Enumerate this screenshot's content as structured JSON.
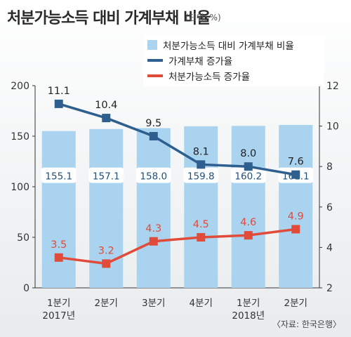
{
  "title": "처분가능소득 대비 가계부채 비율",
  "unit": "(단위: %)",
  "source": "〈자료: 한국은행〉",
  "colors": {
    "bar": "#a9d3ee",
    "household_debt_line": "#2e5f8e",
    "income_line": "#e04b3a"
  },
  "chart_data": {
    "type": "bar",
    "title": "처분가능소득 대비 가계부채 비율",
    "categories": [
      "1분기",
      "2분기",
      "3분기",
      "4분기",
      "1분기",
      "2분기"
    ],
    "category_years": [
      "2017년",
      "",
      "",
      "",
      "2018년",
      ""
    ],
    "series": [
      {
        "name": "처분가능소득 대비 가계부채 비율",
        "type": "bar",
        "axis": "left",
        "values": [
          155.1,
          157.1,
          158.0,
          159.8,
          160.2,
          161.1
        ]
      },
      {
        "name": "가계부채 증가율",
        "type": "line",
        "axis": "right",
        "values": [
          11.1,
          10.4,
          9.5,
          8.1,
          8.0,
          7.6
        ]
      },
      {
        "name": "처분가능소득 증가율",
        "type": "line",
        "axis": "right",
        "values": [
          3.5,
          3.2,
          4.3,
          4.5,
          4.6,
          4.9
        ]
      }
    ],
    "y_left": {
      "range": [
        0,
        200
      ],
      "ticks": [
        "0",
        "50",
        "100",
        "150",
        "200"
      ]
    },
    "y_right": {
      "range": [
        2,
        12
      ],
      "ticks": [
        "2",
        "4",
        "6",
        "8",
        "10",
        "12"
      ]
    },
    "legend_position": "top-right"
  }
}
